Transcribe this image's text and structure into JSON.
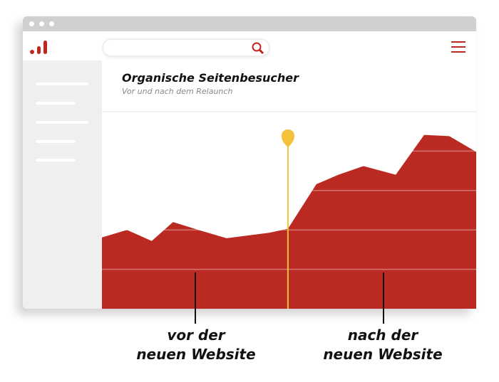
{
  "window": {
    "title_dots": 3
  },
  "header": {
    "logo_icon": "bar-chart-logo-icon",
    "search": {
      "placeholder": "",
      "icon": "search-icon"
    },
    "menu_icon": "hamburger-menu-icon"
  },
  "sidebar": {
    "items": 5
  },
  "chart_data": {
    "type": "area",
    "title": "Organische Seitenbesucher",
    "subtitle": "Vor und nach dem Relaunch",
    "x": [
      0,
      6.7,
      13.3,
      19.0,
      26.1,
      33.3,
      44.8,
      49.7,
      57.3,
      63.2,
      69.9,
      78.5,
      86.1,
      92.8,
      100
    ],
    "values": [
      1.81,
      2.0,
      1.72,
      2.2,
      1.99,
      1.79,
      1.93,
      2.03,
      3.16,
      3.4,
      3.62,
      3.4,
      4.41,
      4.38,
      3.98
    ],
    "ylim": [
      0,
      5
    ],
    "grid": true,
    "marker_x": 49.7,
    "colors": {
      "area": "#bb2a22",
      "marker": "#f3c13a",
      "grid": "#eeeeee"
    }
  },
  "annotations": {
    "before": "vor der\nneuen Website",
    "after": "nach der\nneuen Website"
  },
  "colors": {
    "accent": "#c0281f",
    "titlebar": "#d0d0d0",
    "sidebar": "#efefef"
  }
}
